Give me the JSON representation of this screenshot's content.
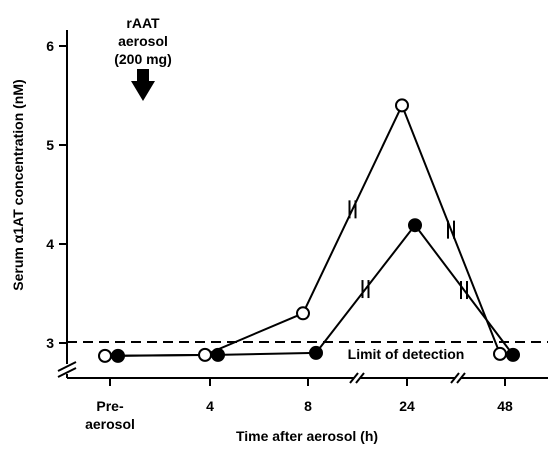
{
  "chart_data": {
    "type": "line",
    "ylabel": "Serum α1AT concentration (nM)",
    "xlabel": "Time after aerosol (h)",
    "ylim": [
      2.6,
      6.2
    ],
    "y_ticks": [
      3,
      4,
      5,
      6
    ],
    "categories": [
      {
        "line1": "Pre-",
        "line2": "aerosol"
      },
      {
        "line1": "4",
        "line2": ""
      },
      {
        "line1": "8",
        "line2": ""
      },
      {
        "line1": "24",
        "line2": ""
      },
      {
        "line1": "48",
        "line2": ""
      }
    ],
    "series": [
      {
        "marker": "open",
        "values": [
          2.87,
          2.88,
          3.3,
          5.4,
          2.89
        ]
      },
      {
        "marker": "filled",
        "values": [
          2.87,
          2.88,
          2.9,
          4.19,
          2.88
        ]
      }
    ],
    "detection_limit": {
      "value": 3.01,
      "label": "Limit of detection"
    },
    "aerosol_annotation": {
      "lines": [
        "rAAT",
        "aerosol",
        "(200 mg)"
      ]
    },
    "x_axis_breaks": true,
    "y_axis_break": true,
    "grid": false
  }
}
